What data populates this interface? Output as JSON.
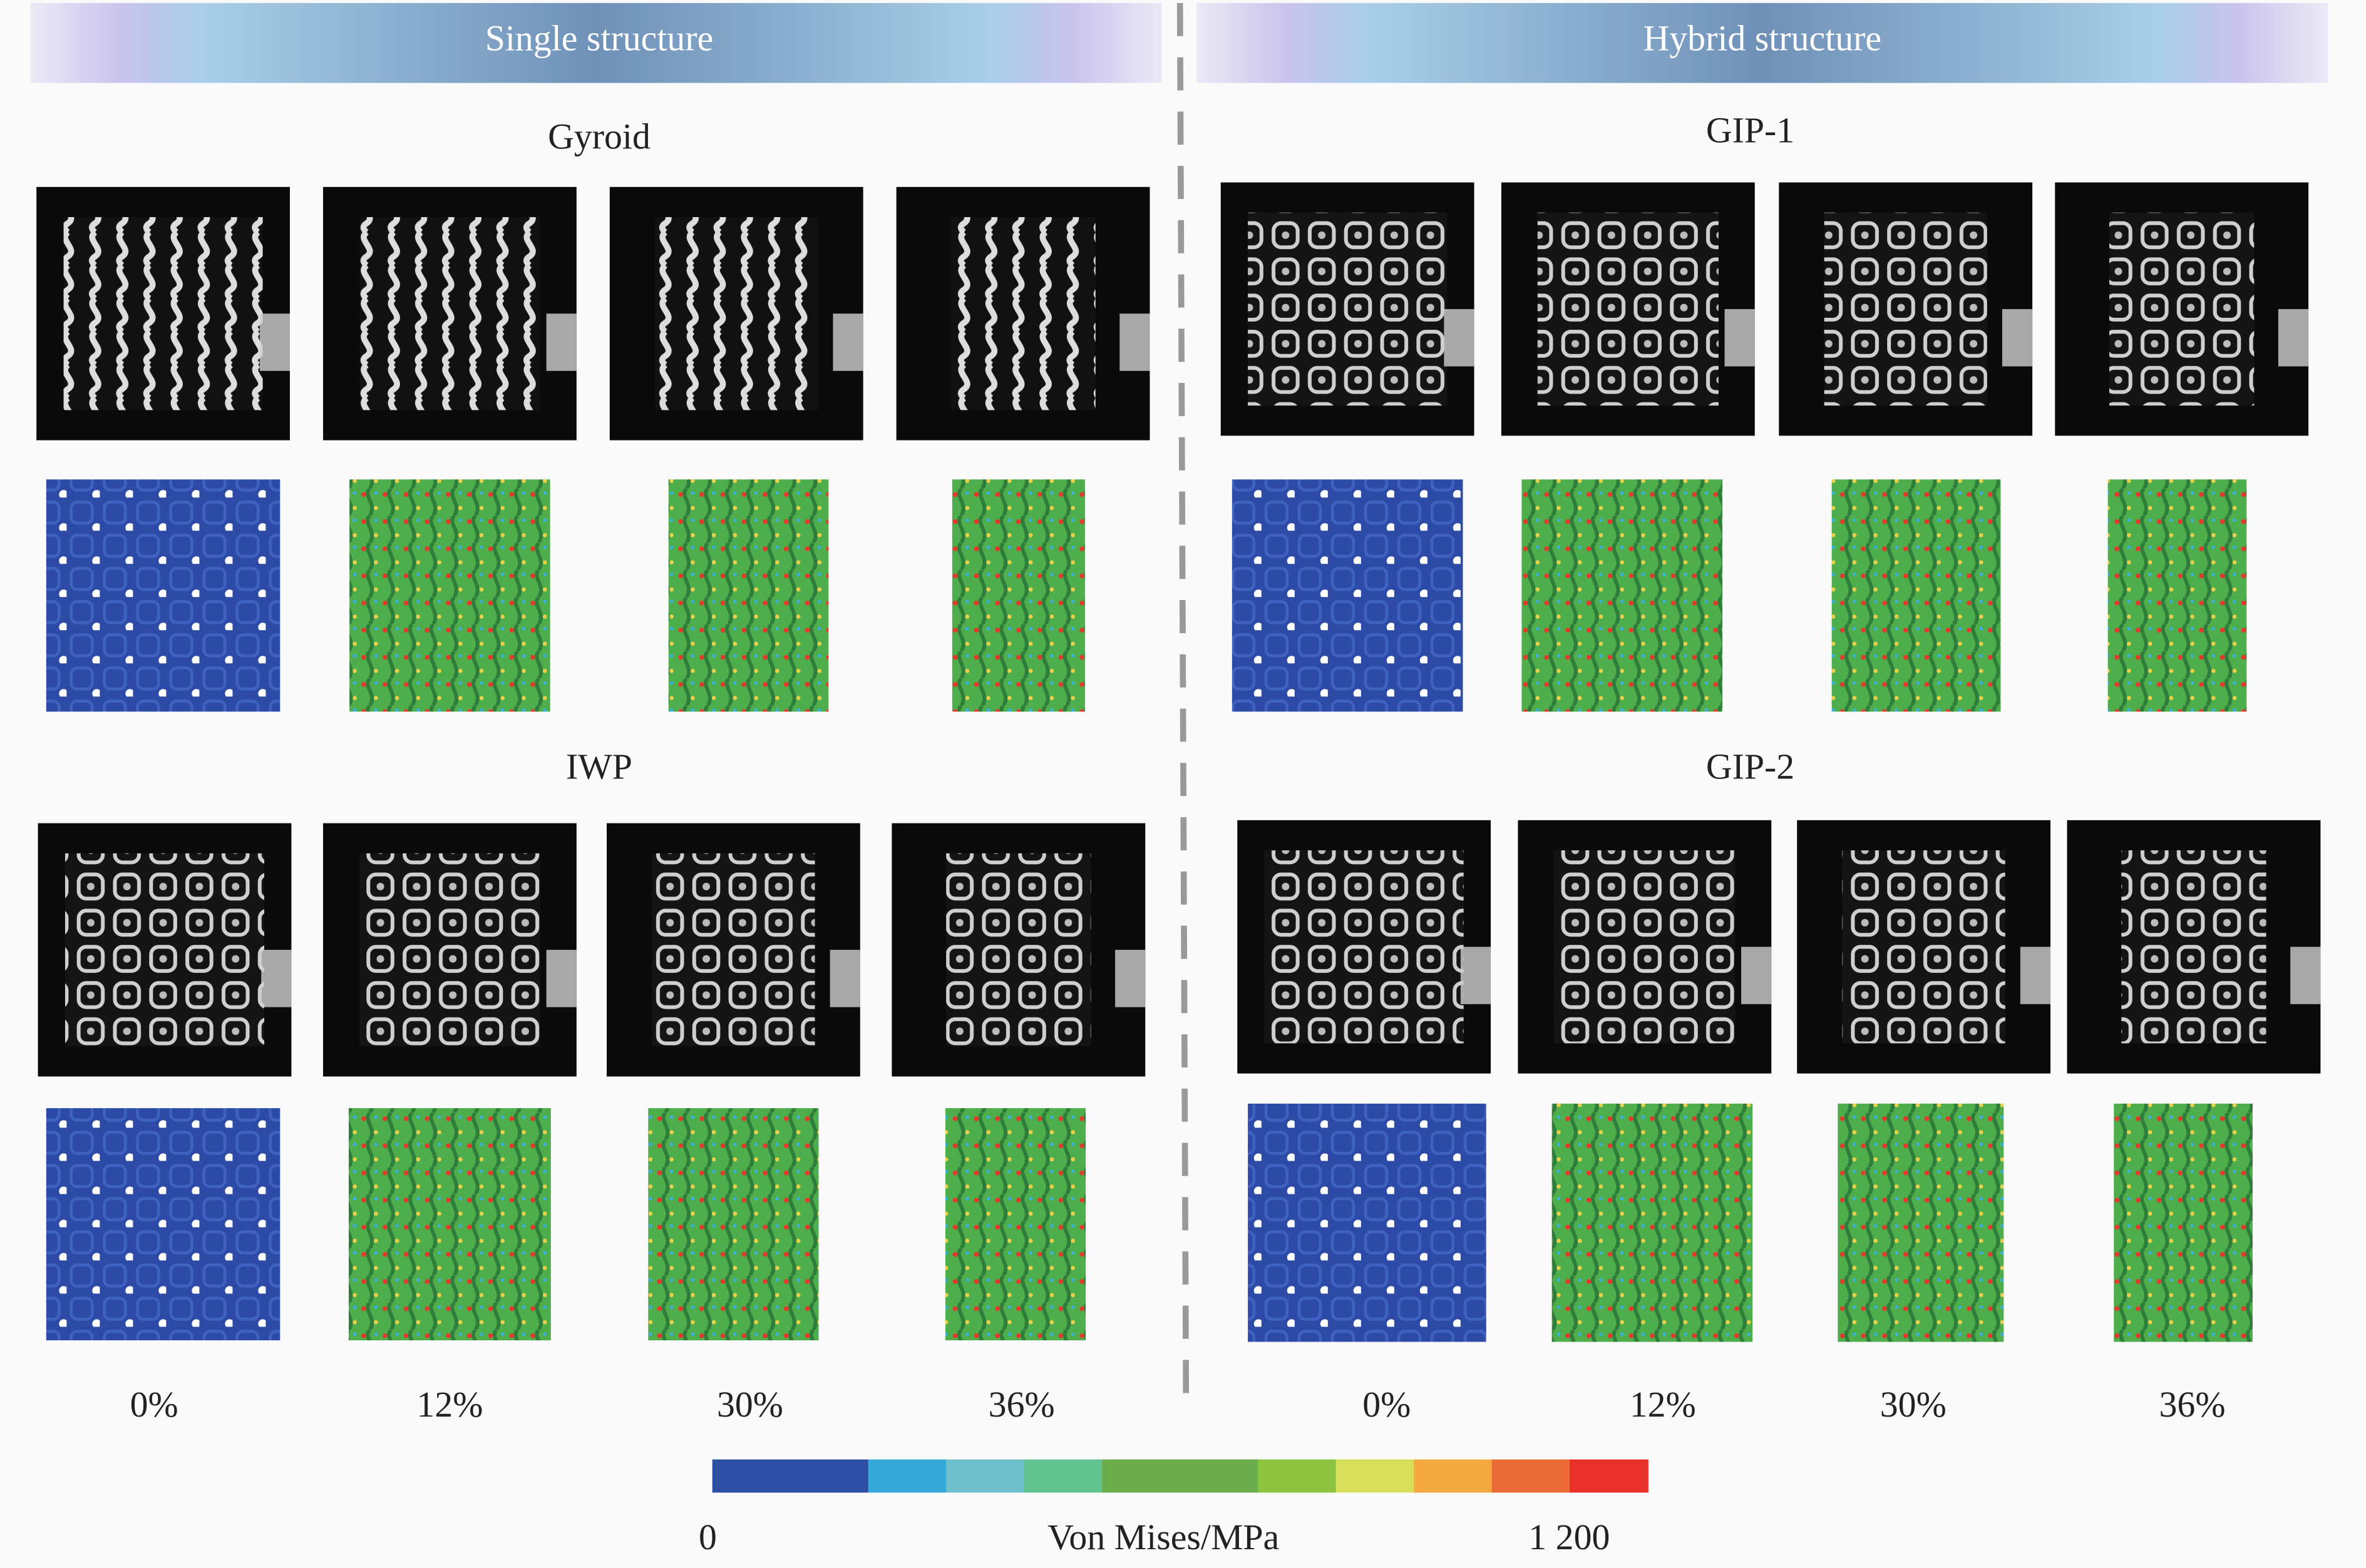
{
  "header": {
    "left": "Single structure",
    "right": "Hybrid structure"
  },
  "panels": [
    {
      "title": "Gyroid"
    },
    {
      "title": "GIP-1"
    },
    {
      "title": "IWP"
    },
    {
      "title": "GIP-2"
    }
  ],
  "strains": [
    "0%",
    "12%",
    "30%",
    "36%"
  ],
  "colorbar": {
    "min_label": "0",
    "title": "Von Mises/MPa",
    "max_label": "1 200",
    "colors": [
      "#2d4fa3",
      "#2d4fa3",
      "#34a8d8",
      "#6cc0c9",
      "#5fc28f",
      "#6aab4a",
      "#6aab4a",
      "#8cc43f",
      "#d7e05a",
      "#f3a940",
      "#ec6a37",
      "#e8302a"
    ]
  }
}
